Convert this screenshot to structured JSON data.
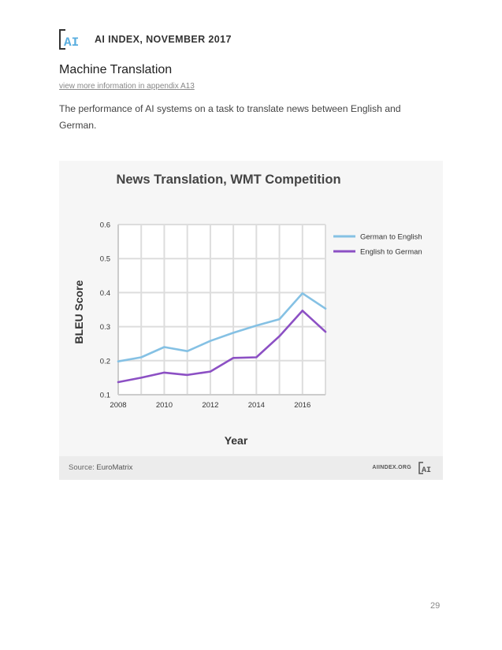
{
  "header": {
    "logo_text": "AI",
    "title": "AI INDEX, NOVEMBER 2017"
  },
  "section": {
    "title": "Machine Translation",
    "appendix_link": "view more information in appendix A13",
    "description": "The performance of AI systems on a task to translate news between English and German."
  },
  "chart_data": {
    "type": "line",
    "title": "News Translation, WMT Competition",
    "xlabel": "Year",
    "ylabel": "BLEU Score",
    "x": [
      2008,
      2009,
      2010,
      2011,
      2012,
      2013,
      2014,
      2015,
      2016,
      2017
    ],
    "x_ticks": [
      "2008",
      "2010",
      "2012",
      "2014",
      "2016"
    ],
    "y_ticks": [
      "0.1",
      "0.2",
      "0.3",
      "0.4",
      "0.5",
      "0.6"
    ],
    "xlim": [
      2008,
      2017
    ],
    "ylim": [
      0.1,
      0.6
    ],
    "grid": true,
    "legend_position": "top-right",
    "series": [
      {
        "name": "German to English",
        "color": "#85c1e4",
        "values": [
          0.198,
          0.21,
          0.24,
          0.228,
          0.258,
          0.282,
          0.303,
          0.322,
          0.398,
          0.353
        ]
      },
      {
        "name": "English to German",
        "color": "#8c50c4",
        "values": [
          0.137,
          0.15,
          0.165,
          0.158,
          0.168,
          0.208,
          0.21,
          0.272,
          0.347,
          0.285
        ]
      }
    ]
  },
  "source": {
    "label": "Source: ",
    "name": "EuroMatrix",
    "site": "AIINDEX.ORG",
    "logo_text": "AI"
  },
  "page_number": "29"
}
